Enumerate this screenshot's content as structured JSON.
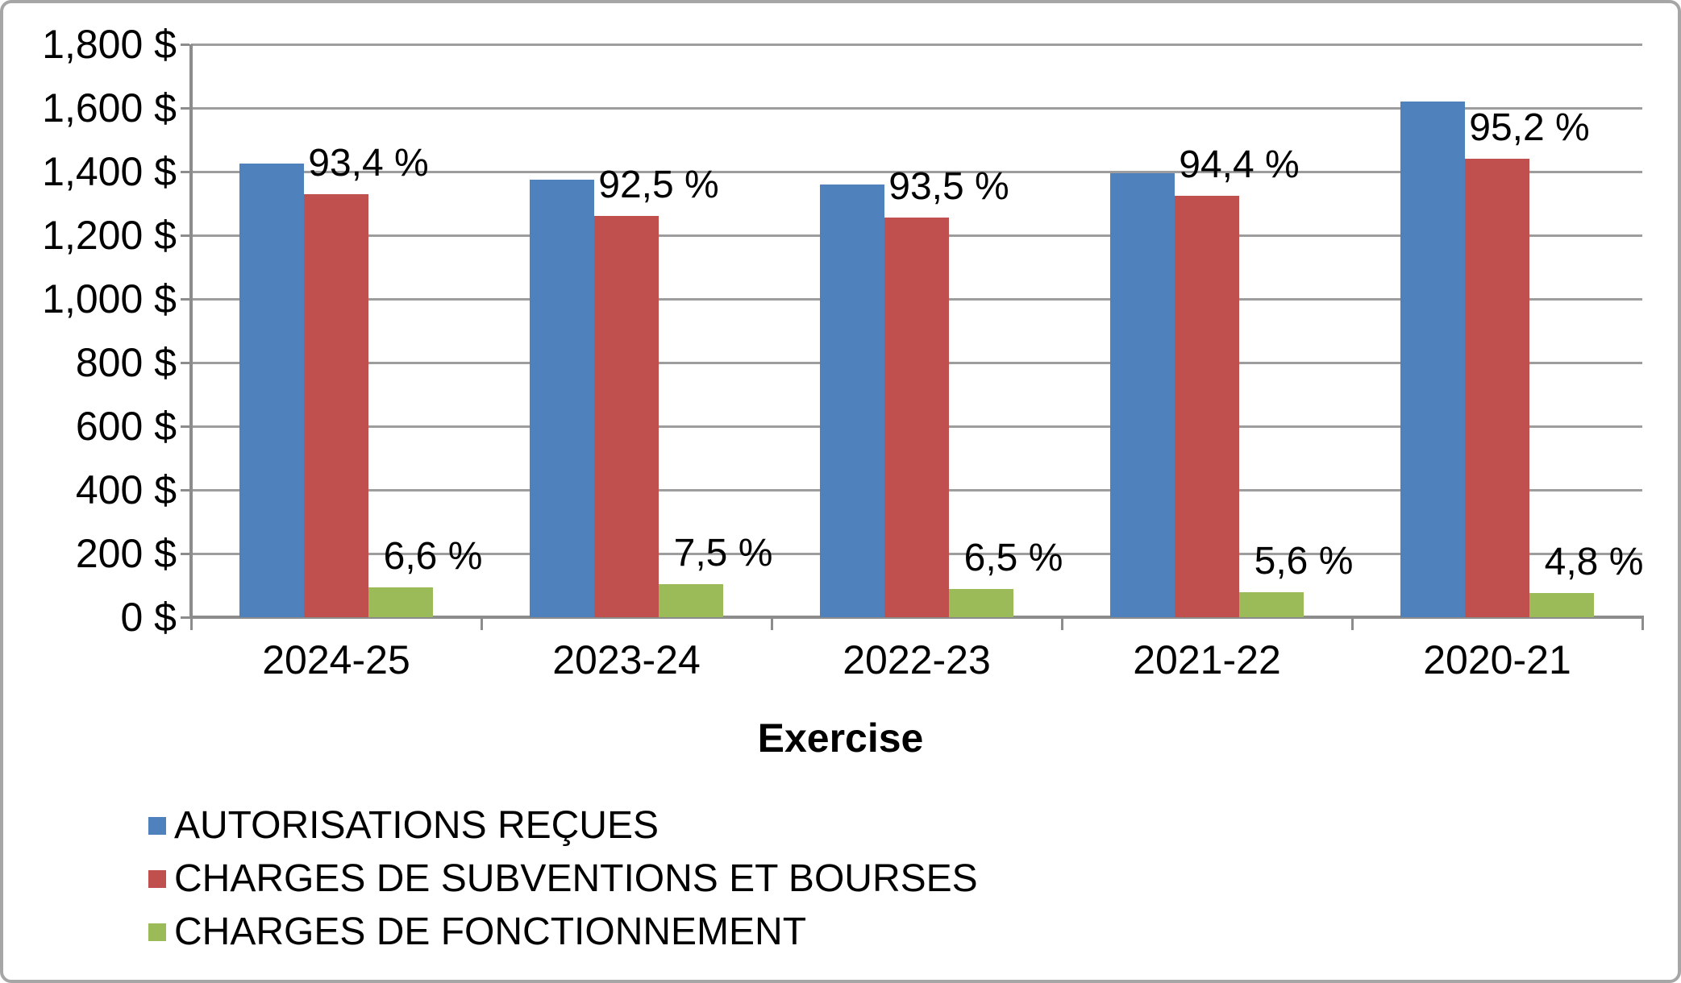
{
  "chart_data": {
    "type": "bar",
    "title": "",
    "xlabel": "Exercise",
    "ylabel": "",
    "categories": [
      "2024-25",
      "2023-24",
      "2022-23",
      "2021-22",
      "2020-21"
    ],
    "series": [
      {
        "name": "AUTORISATIONS REÇUES",
        "color": "#4F81BD",
        "values": [
          1425,
          1375,
          1360,
          1395,
          1620
        ],
        "bar_labels": [
          "",
          "",
          "",
          "",
          ""
        ]
      },
      {
        "name": "CHARGES DE SUBVENTIONS ET BOURSES",
        "color": "#C0504D",
        "values": [
          1330,
          1260,
          1255,
          1325,
          1440
        ],
        "bar_labels": [
          "93,4 %",
          "92,5 %",
          "93,5 %",
          "94,4 %",
          "95,2 %"
        ]
      },
      {
        "name": "CHARGES DE FONCTIONNEMENT",
        "color": "#9BBB59",
        "values": [
          94,
          103,
          88,
          78,
          75
        ],
        "bar_labels": [
          "6,6 %",
          "7,5 %",
          "6,5 %",
          "5,6 %",
          "4,8 %"
        ]
      }
    ],
    "ylim": [
      0,
      1800
    ],
    "ytick_step": 200,
    "ytick_labels": [
      "0 $",
      "200 $",
      "400 $",
      "600 $",
      "800 $",
      "1,000 $",
      "1,200 $",
      "1,400 $",
      "1,600 $",
      "1,800 $"
    ],
    "grid": true,
    "legend_position": "bottom-left",
    "colors": {
      "gridline": "#9D9D9D",
      "axis": "#8C8C8C",
      "border": "#A6A6A6",
      "text": "#000000",
      "background": "#FFFFFF"
    }
  }
}
